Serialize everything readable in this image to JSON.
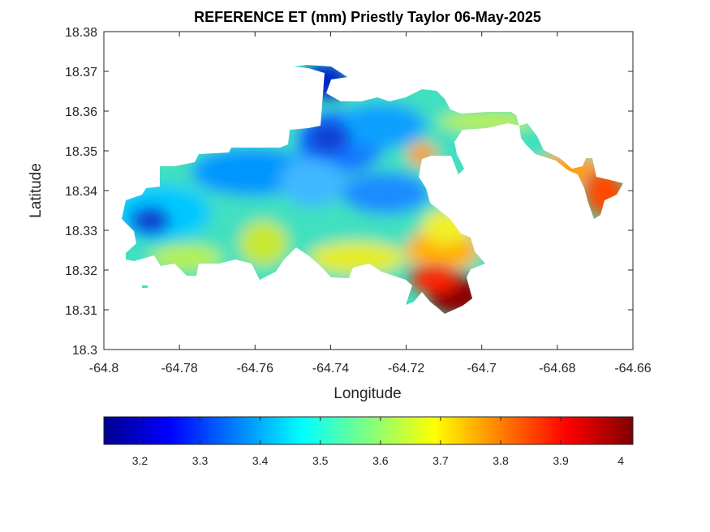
{
  "chart_data": {
    "type": "heatmap",
    "title": "REFERENCE ET (mm) Priestly Taylor 06-May-2025",
    "xlabel": "Longitude",
    "ylabel": "Latitude",
    "xlim": [
      -64.8,
      -64.66
    ],
    "ylim": [
      18.3,
      18.38
    ],
    "xticks": [
      -64.8,
      -64.78,
      -64.76,
      -64.74,
      -64.72,
      -64.7,
      -64.68,
      -64.66
    ],
    "xtick_labels": [
      "-64.8",
      "-64.78",
      "-64.76",
      "-64.74",
      "-64.72",
      "-64.7",
      "-64.68",
      "-64.66"
    ],
    "yticks": [
      18.3,
      18.31,
      18.32,
      18.33,
      18.34,
      18.35,
      18.36,
      18.37,
      18.38
    ],
    "ytick_labels": [
      "18.3",
      "18.31",
      "18.32",
      "18.33",
      "18.34",
      "18.35",
      "18.36",
      "18.37",
      "18.38"
    ],
    "colorbar": {
      "colormap": "jet",
      "range": [
        3.14,
        4.02
      ],
      "ticks": [
        3.2,
        3.3,
        3.4,
        3.5,
        3.6,
        3.7,
        3.8,
        3.9,
        4
      ],
      "tick_labels": [
        "3.2",
        "3.3",
        "3.4",
        "3.5",
        "3.6",
        "3.7",
        "3.8",
        "3.9",
        "4"
      ],
      "orientation": "horizontal",
      "placement": "below"
    },
    "grid": false,
    "regions": [
      {
        "region": "north-central peak (~-64.74, 18.368)",
        "value": 3.18
      },
      {
        "region": "north-central interior (~-64.74, 18.352)",
        "value": 3.25
      },
      {
        "region": "west tip (~-64.787, 18.332)",
        "value": 3.2
      },
      {
        "region": "central (~-64.735, 18.34)",
        "value": 3.4
      },
      {
        "region": "southwest coast (~-64.775, 18.32)",
        "value": 3.55
      },
      {
        "region": "south coast (~-64.745, 18.32)",
        "value": 3.6
      },
      {
        "region": "southwest of south bay (~-64.757, 18.319)",
        "value": 3.7
      },
      {
        "region": "northeast strip (~-64.7, 18.358)",
        "value": 3.62
      },
      {
        "region": "eastern bay edge (~-64.713, 18.349)",
        "value": 3.85
      },
      {
        "region": "east peninsula (~-64.67, 18.338)",
        "value": 3.88
      },
      {
        "region": "southeast point (~-64.708, 18.312)",
        "value": 4.0
      }
    ]
  }
}
